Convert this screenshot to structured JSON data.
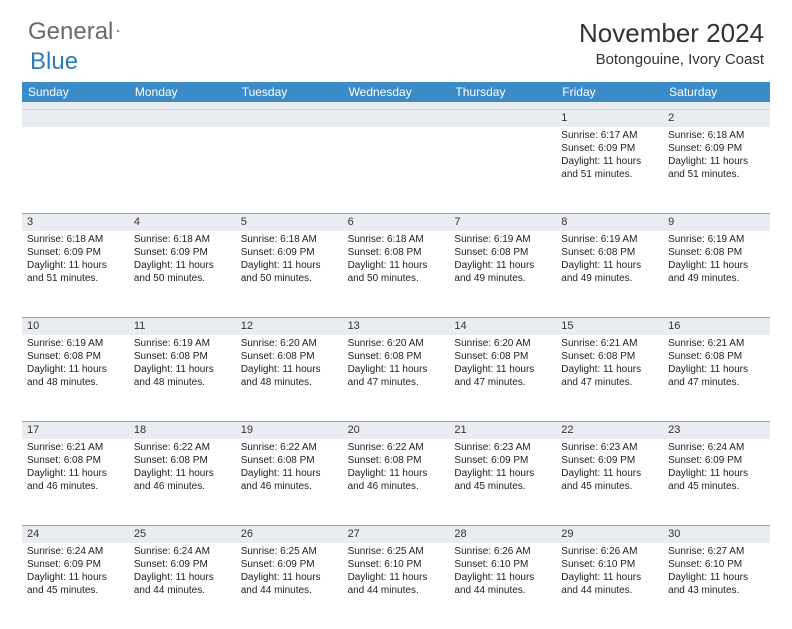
{
  "logo": {
    "general": "General",
    "blue": "Blue"
  },
  "title": "November 2024",
  "location": "Botongouine, Ivory Coast",
  "colors": {
    "header_bg": "#3b8bc9",
    "header_text": "#ffffff",
    "daynum_bg": "#e9edf1",
    "border": "#9aa4ad",
    "text": "#222222"
  },
  "weekdays": [
    "Sunday",
    "Monday",
    "Tuesday",
    "Wednesday",
    "Thursday",
    "Friday",
    "Saturday"
  ],
  "weeks": [
    [
      null,
      null,
      null,
      null,
      null,
      {
        "n": "1",
        "sunrise": "6:17 AM",
        "sunset": "6:09 PM",
        "day": "11 hours and 51 minutes."
      },
      {
        "n": "2",
        "sunrise": "6:18 AM",
        "sunset": "6:09 PM",
        "day": "11 hours and 51 minutes."
      }
    ],
    [
      {
        "n": "3",
        "sunrise": "6:18 AM",
        "sunset": "6:09 PM",
        "day": "11 hours and 51 minutes."
      },
      {
        "n": "4",
        "sunrise": "6:18 AM",
        "sunset": "6:09 PM",
        "day": "11 hours and 50 minutes."
      },
      {
        "n": "5",
        "sunrise": "6:18 AM",
        "sunset": "6:09 PM",
        "day": "11 hours and 50 minutes."
      },
      {
        "n": "6",
        "sunrise": "6:18 AM",
        "sunset": "6:08 PM",
        "day": "11 hours and 50 minutes."
      },
      {
        "n": "7",
        "sunrise": "6:19 AM",
        "sunset": "6:08 PM",
        "day": "11 hours and 49 minutes."
      },
      {
        "n": "8",
        "sunrise": "6:19 AM",
        "sunset": "6:08 PM",
        "day": "11 hours and 49 minutes."
      },
      {
        "n": "9",
        "sunrise": "6:19 AM",
        "sunset": "6:08 PM",
        "day": "11 hours and 49 minutes."
      }
    ],
    [
      {
        "n": "10",
        "sunrise": "6:19 AM",
        "sunset": "6:08 PM",
        "day": "11 hours and 48 minutes."
      },
      {
        "n": "11",
        "sunrise": "6:19 AM",
        "sunset": "6:08 PM",
        "day": "11 hours and 48 minutes."
      },
      {
        "n": "12",
        "sunrise": "6:20 AM",
        "sunset": "6:08 PM",
        "day": "11 hours and 48 minutes."
      },
      {
        "n": "13",
        "sunrise": "6:20 AM",
        "sunset": "6:08 PM",
        "day": "11 hours and 47 minutes."
      },
      {
        "n": "14",
        "sunrise": "6:20 AM",
        "sunset": "6:08 PM",
        "day": "11 hours and 47 minutes."
      },
      {
        "n": "15",
        "sunrise": "6:21 AM",
        "sunset": "6:08 PM",
        "day": "11 hours and 47 minutes."
      },
      {
        "n": "16",
        "sunrise": "6:21 AM",
        "sunset": "6:08 PM",
        "day": "11 hours and 47 minutes."
      }
    ],
    [
      {
        "n": "17",
        "sunrise": "6:21 AM",
        "sunset": "6:08 PM",
        "day": "11 hours and 46 minutes."
      },
      {
        "n": "18",
        "sunrise": "6:22 AM",
        "sunset": "6:08 PM",
        "day": "11 hours and 46 minutes."
      },
      {
        "n": "19",
        "sunrise": "6:22 AM",
        "sunset": "6:08 PM",
        "day": "11 hours and 46 minutes."
      },
      {
        "n": "20",
        "sunrise": "6:22 AM",
        "sunset": "6:08 PM",
        "day": "11 hours and 46 minutes."
      },
      {
        "n": "21",
        "sunrise": "6:23 AM",
        "sunset": "6:09 PM",
        "day": "11 hours and 45 minutes."
      },
      {
        "n": "22",
        "sunrise": "6:23 AM",
        "sunset": "6:09 PM",
        "day": "11 hours and 45 minutes."
      },
      {
        "n": "23",
        "sunrise": "6:24 AM",
        "sunset": "6:09 PM",
        "day": "11 hours and 45 minutes."
      }
    ],
    [
      {
        "n": "24",
        "sunrise": "6:24 AM",
        "sunset": "6:09 PM",
        "day": "11 hours and 45 minutes."
      },
      {
        "n": "25",
        "sunrise": "6:24 AM",
        "sunset": "6:09 PM",
        "day": "11 hours and 44 minutes."
      },
      {
        "n": "26",
        "sunrise": "6:25 AM",
        "sunset": "6:09 PM",
        "day": "11 hours and 44 minutes."
      },
      {
        "n": "27",
        "sunrise": "6:25 AM",
        "sunset": "6:10 PM",
        "day": "11 hours and 44 minutes."
      },
      {
        "n": "28",
        "sunrise": "6:26 AM",
        "sunset": "6:10 PM",
        "day": "11 hours and 44 minutes."
      },
      {
        "n": "29",
        "sunrise": "6:26 AM",
        "sunset": "6:10 PM",
        "day": "11 hours and 44 minutes."
      },
      {
        "n": "30",
        "sunrise": "6:27 AM",
        "sunset": "6:10 PM",
        "day": "11 hours and 43 minutes."
      }
    ]
  ],
  "labels": {
    "sunrise": "Sunrise:",
    "sunset": "Sunset:",
    "daylight": "Daylight:"
  }
}
